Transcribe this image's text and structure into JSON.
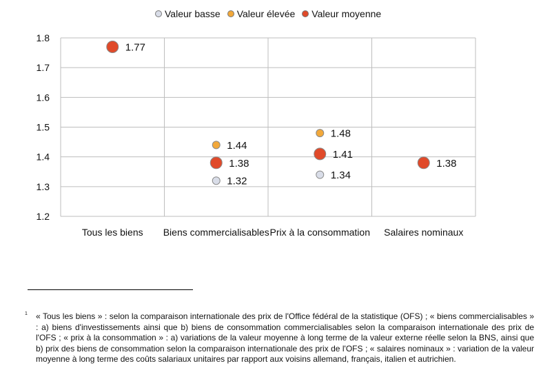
{
  "chart_data": {
    "type": "scatter",
    "categories": [
      "Tous les biens",
      "Biens commercialisables",
      "Prix à la consommation",
      "Salaires nominaux"
    ],
    "ylim": [
      1.2,
      1.8
    ],
    "yticks": [
      "1.2",
      "1.3",
      "1.4",
      "1.5",
      "1.6",
      "1.7",
      "1.8"
    ],
    "grid": true,
    "legend_position": "top-center",
    "series": [
      {
        "name": "Valeur basse",
        "color": "#d9dde8",
        "values": [
          null,
          1.32,
          1.34,
          null
        ],
        "labels": [
          null,
          "1.32",
          "1.34",
          null
        ]
      },
      {
        "name": "Valeur élevée",
        "color": "#f2a83a",
        "values": [
          null,
          1.44,
          1.48,
          null
        ],
        "labels": [
          null,
          "1.44",
          "1.48",
          null
        ]
      },
      {
        "name": "Valeur moyenne",
        "color": "#e04a2a",
        "values": [
          1.77,
          1.38,
          1.41,
          1.38
        ],
        "labels": [
          "1.77",
          "1.38",
          "1.41",
          "1.38"
        ]
      }
    ]
  },
  "legend": {
    "low": "Valeur basse",
    "high": "Valeur élevée",
    "mean": "Valeur moyenne"
  },
  "footnote": {
    "mark": "1",
    "text": "« Tous les biens » : selon la comparaison internationale des prix de l'Office fédéral de la statistique (OFS) ; « biens commercialisables » : a) biens d'investissements ainsi que b) biens de consommation commercialisables selon la comparaison internationale des prix de l'OFS ; « prix à la consommation » : a) variations de la valeur moyenne à long terme de la valeur externe réelle selon la BNS, ainsi que b) prix des biens de consommation selon la comparaison internationale des prix de l'OFS ; « salaires nominaux » : variation de la valeur moyenne à long terme des coûts salariaux unitaires par rapport aux voisins allemand, français, italien et autrichien."
  }
}
